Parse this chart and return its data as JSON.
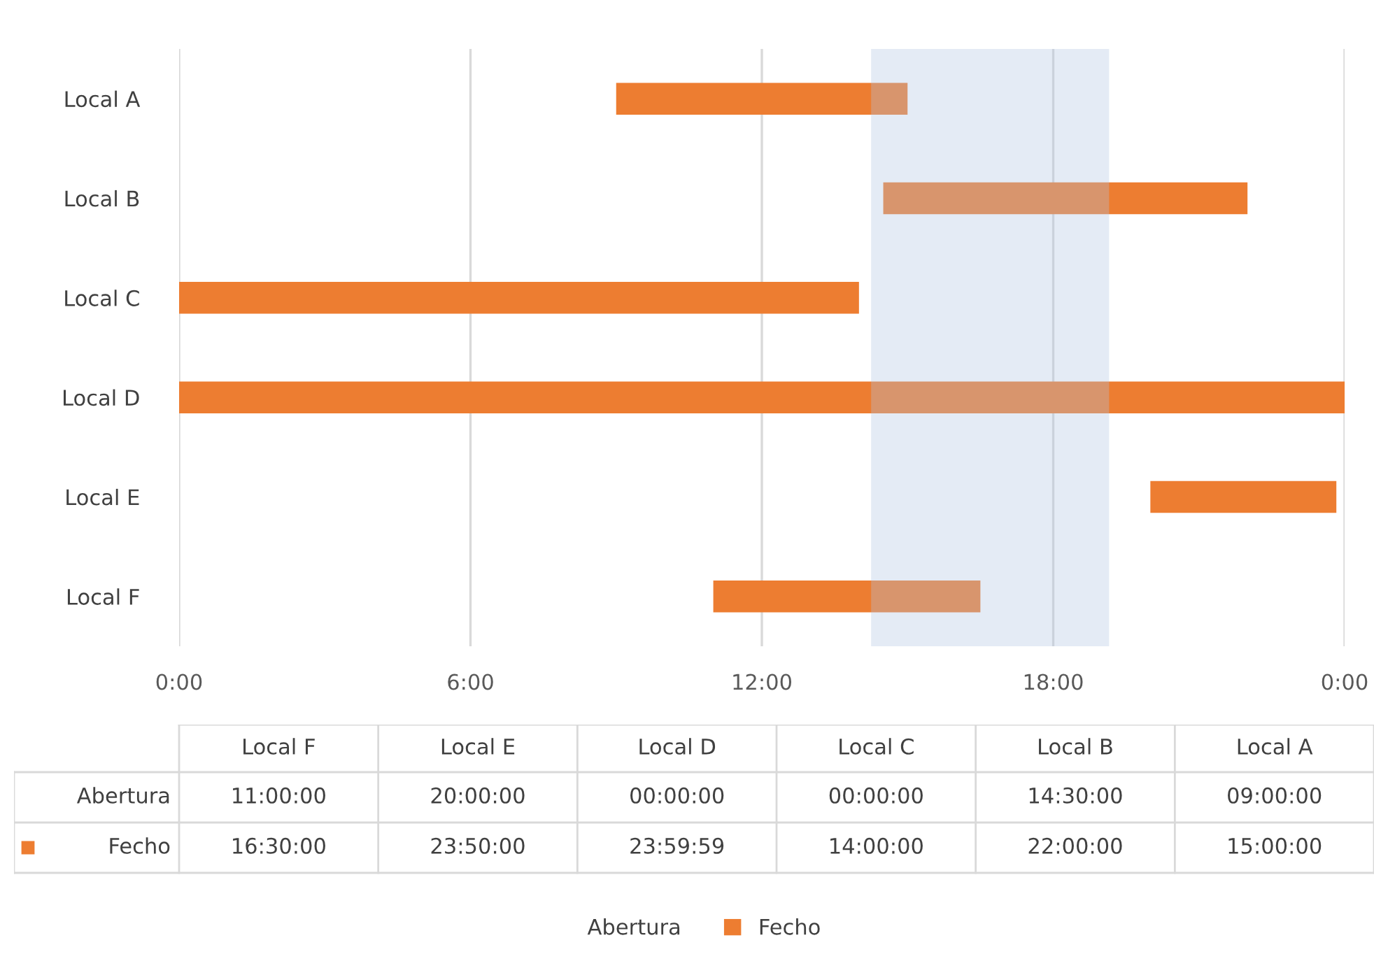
{
  "chart_data": {
    "type": "bar",
    "orientation": "horizontal",
    "categories": [
      "Local A",
      "Local B",
      "Local C",
      "Local D",
      "Local E",
      "Local F"
    ],
    "series": [
      {
        "name": "Abertura",
        "color": null,
        "values": [
          null,
          null,
          null,
          null,
          null,
          null
        ]
      },
      {
        "name": "Fecho",
        "color": "#ed7d31",
        "base": [
          9,
          14.5,
          0,
          0,
          20,
          11
        ],
        "values": [
          6,
          7.5,
          14,
          24,
          3.83,
          5.5
        ]
      }
    ],
    "annotations": [
      "11:00:00",
      "20:00:00",
      "00:00:00",
      "00:00:00",
      "14:30:00",
      "09:00:00",
      "16:30:00",
      "23:50:00",
      "23:59:59",
      "14:00:00",
      "22:00:00",
      "15:00:00"
    ],
    "xlim": [
      0,
      24
    ],
    "xticks": [
      {
        "value": 0,
        "label": "0:00"
      },
      {
        "value": 6,
        "label": "6:00"
      },
      {
        "value": 12,
        "label": "12:00"
      },
      {
        "value": 18,
        "label": "18:00"
      },
      {
        "value": 24,
        "label": "0:00"
      }
    ],
    "bands": [
      {
        "axis": "x",
        "from": 14.25,
        "to": 19.15,
        "color": "#afc4e1"
      }
    ],
    "grid": "x",
    "legend": "bottom"
  }
}
